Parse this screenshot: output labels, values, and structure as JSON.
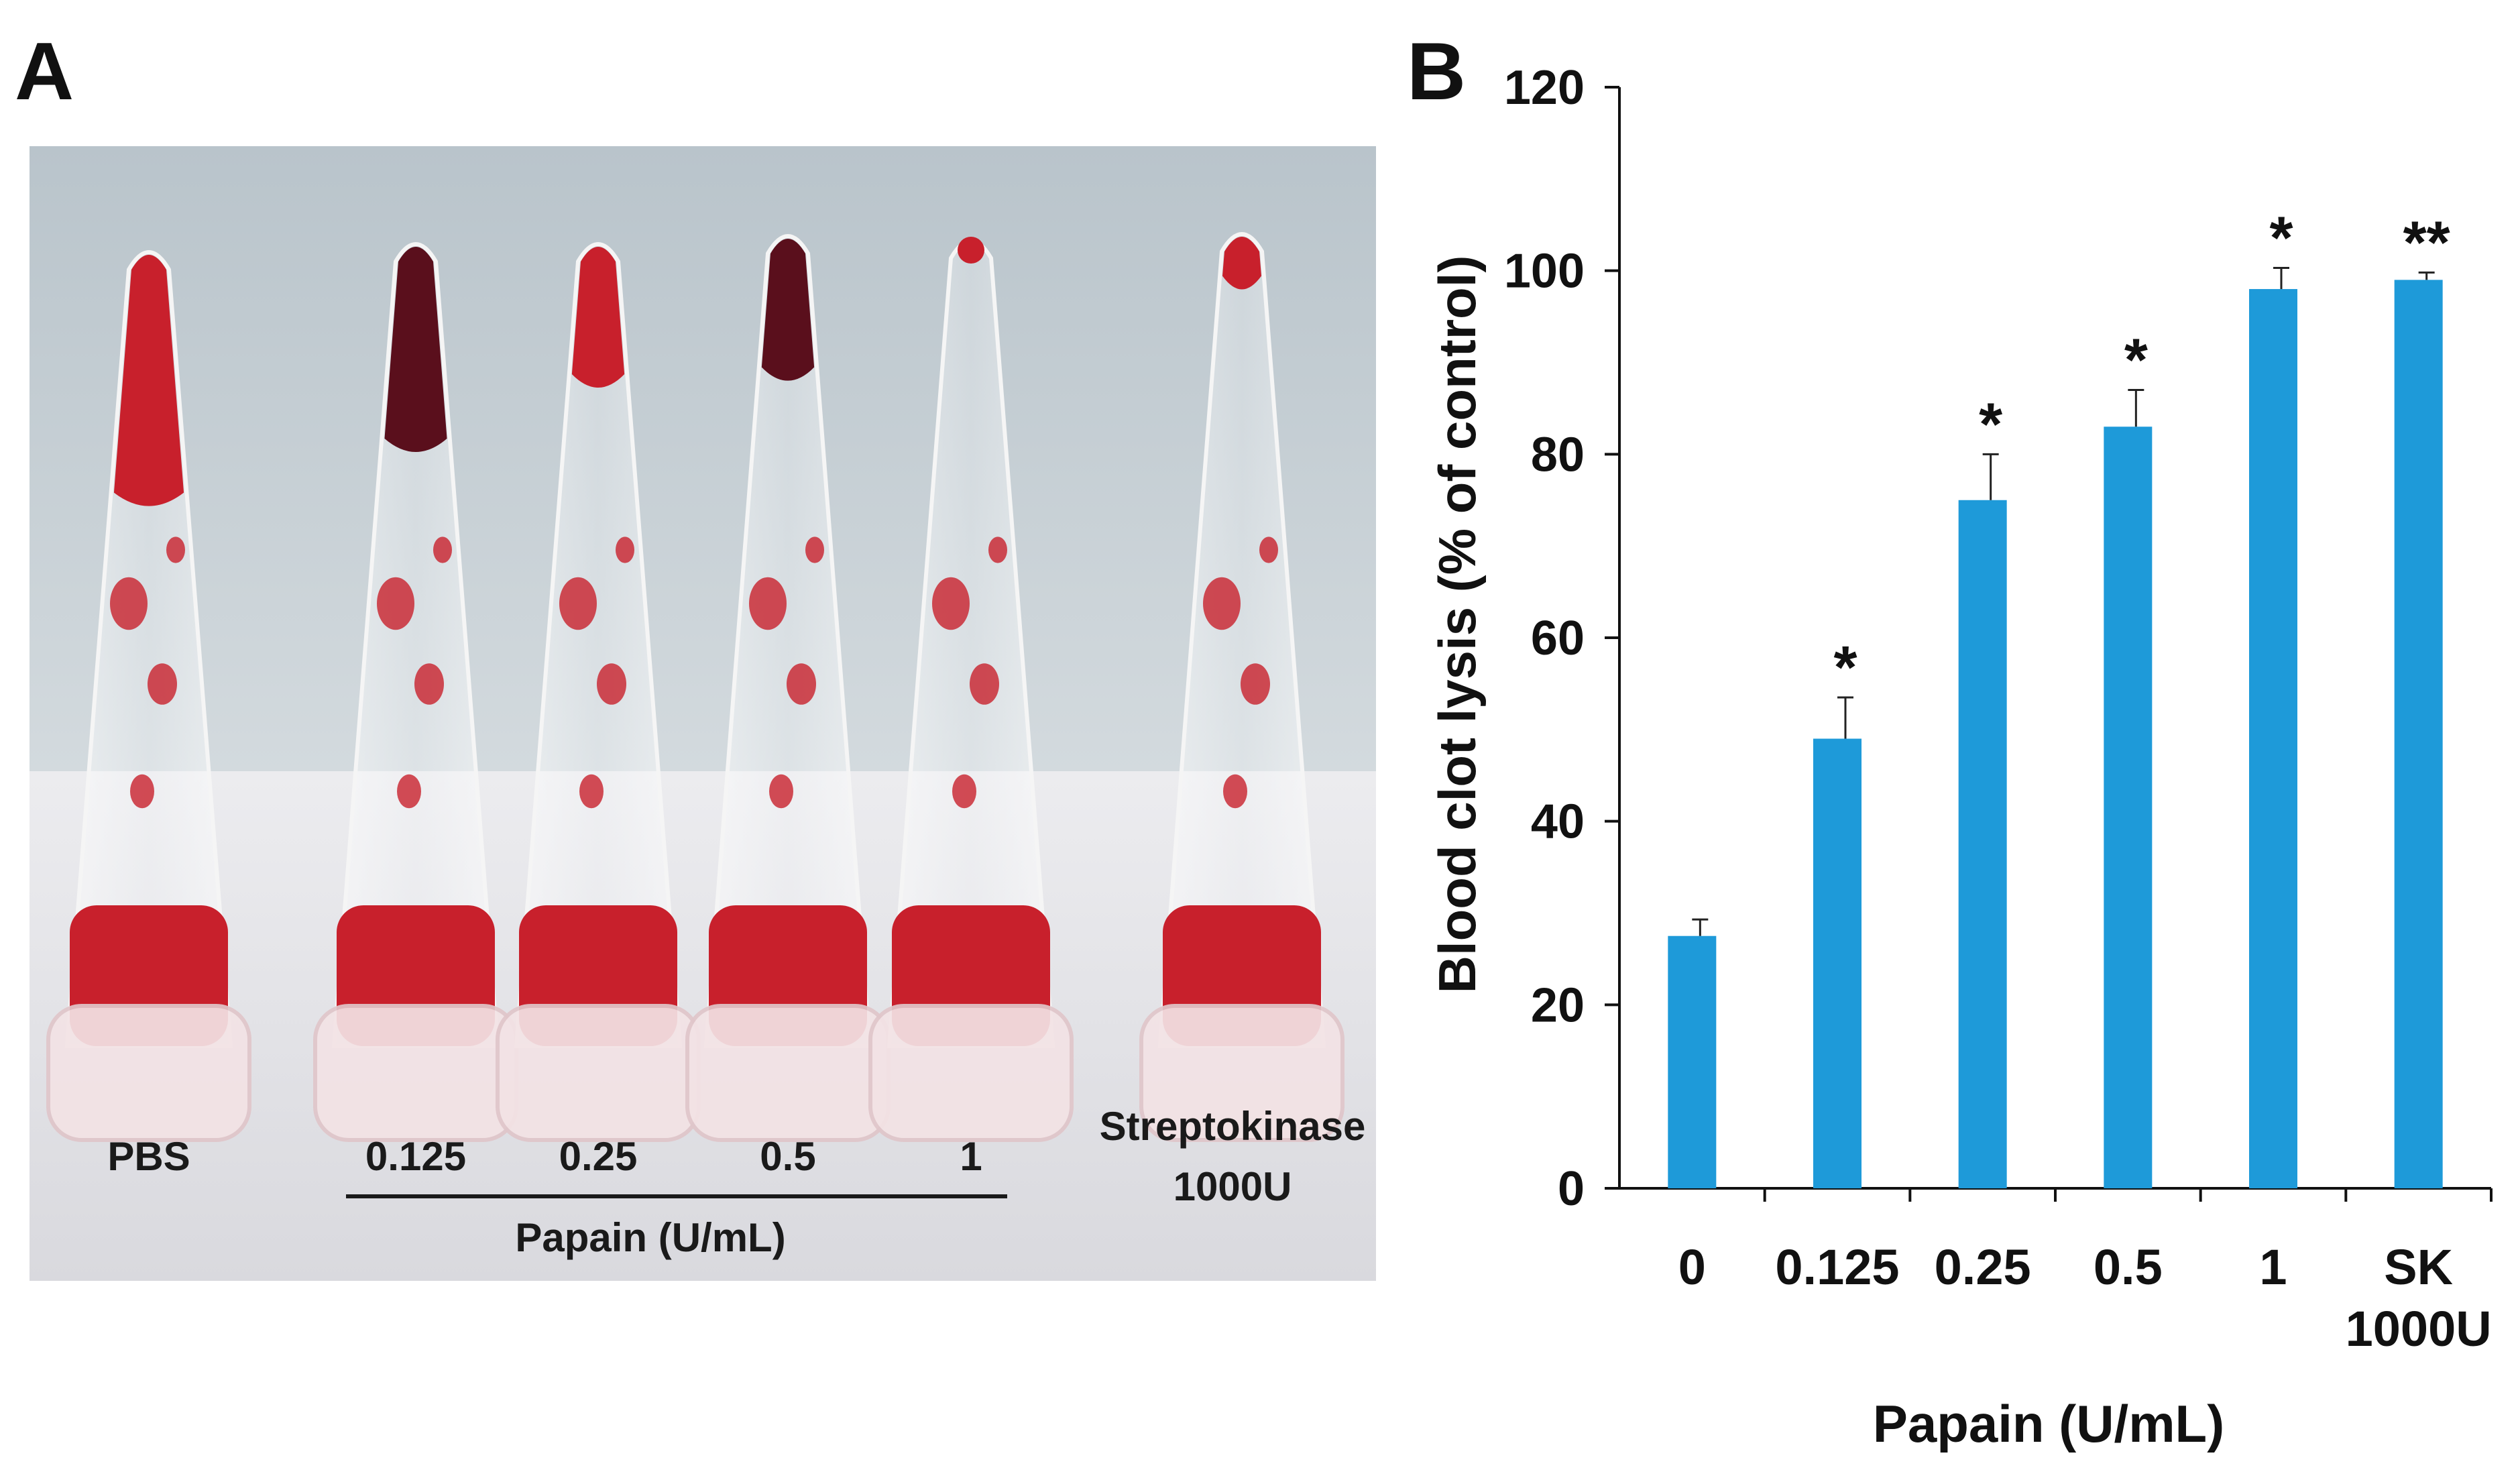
{
  "panels": {
    "a_letter": "A",
    "b_letter": "B"
  },
  "photo": {
    "tube_labels": [
      "PBS",
      "0.125",
      "0.25",
      "0.5",
      "1"
    ],
    "streptokinase_line1": "Streptokinase",
    "streptokinase_line2": "1000U",
    "group_label": "Papain (U/mL)",
    "colors": {
      "wall": "#c8d1d6",
      "table": "#e6e6e9",
      "blood": "#c8202c",
      "dark_blood": "#5a0f1c",
      "tube": "#eef0f2"
    }
  },
  "chart_data": {
    "type": "bar",
    "categories": [
      "0",
      "0.125",
      "0.25",
      "0.5",
      "1",
      "SK 1000U"
    ],
    "category_lines": [
      [
        "0"
      ],
      [
        "0.125"
      ],
      [
        "0.25"
      ],
      [
        "0.5"
      ],
      [
        "1"
      ],
      [
        "SK",
        "1000U"
      ]
    ],
    "values": [
      27.5,
      49,
      75,
      83,
      98,
      99
    ],
    "errors": [
      1.8,
      4.5,
      5,
      4,
      2.3,
      0.8
    ],
    "significance": [
      "",
      "*",
      "*",
      "*",
      "*",
      "**"
    ],
    "xlabel": "Papain (U/mL)",
    "ylabel": "Blood clot lysis (% of control)",
    "ylim": [
      0,
      120
    ],
    "yticks": [
      0,
      20,
      40,
      60,
      80,
      100,
      120
    ],
    "grid": false,
    "bar_color": "#1e9ad9"
  }
}
